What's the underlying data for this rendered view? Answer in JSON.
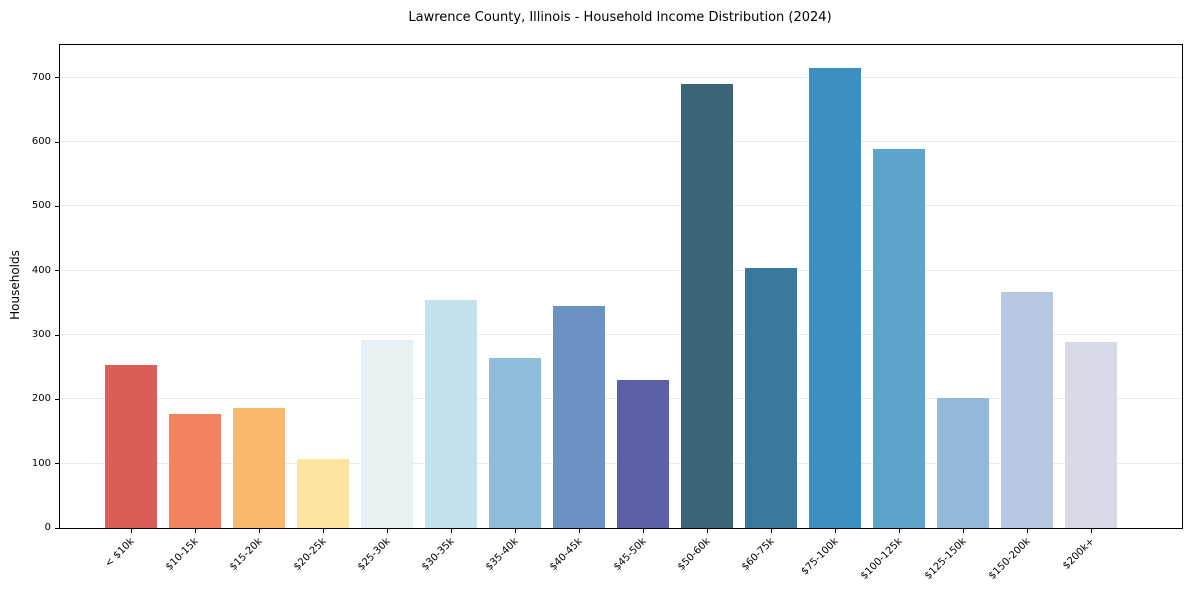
{
  "chart_data": {
    "type": "bar",
    "title": "Lawrence County, Illinois - Household Income Distribution (2024)",
    "xlabel": "",
    "ylabel": "Households",
    "categories": [
      "< $10k",
      "$10-15k",
      "$15-20k",
      "$20-25k",
      "$25-30k",
      "$30-35k",
      "$35-40k",
      "$40-45k",
      "$45-50k",
      "$50-60k",
      "$60-75k",
      "$75-100k",
      "$100-125k",
      "$125-150k",
      "$150-200k",
      "$200k+"
    ],
    "values": [
      253,
      177,
      187,
      107,
      292,
      354,
      265,
      345,
      230,
      690,
      405,
      716,
      589,
      202,
      367,
      289
    ],
    "bar_colors": [
      "#d95f58",
      "#f1845e",
      "#f9b96d",
      "#fde5a1",
      "#e7f1f3",
      "#c4e1ed",
      "#8fbcd8",
      "#6b92c3",
      "#5e5fa9",
      "#3b6477",
      "#3a789e",
      "#3c90c1",
      "#5ca4ca",
      "#94b8d8",
      "#b9c8e1",
      "#d8dae7"
    ],
    "yticks": [
      0,
      100,
      200,
      300,
      400,
      500,
      600,
      700
    ],
    "ylim": [
      0,
      751
    ],
    "grid": "horizontal",
    "gridline_color": "#ebebeb",
    "axis_color": "#000000",
    "background": "#ffffff",
    "legend": "none"
  }
}
